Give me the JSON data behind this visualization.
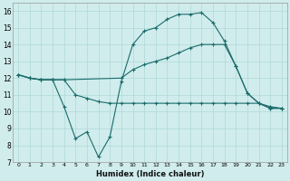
{
  "xlabel": "Humidex (Indice chaleur)",
  "bg_color": "#d0ecec",
  "grid_color": "#b0d8d8",
  "line_color": "#1a6b6b",
  "xlim": [
    -0.5,
    23.5
  ],
  "ylim": [
    7,
    16.5
  ],
  "line1_x": [
    0,
    1,
    2,
    3,
    4,
    5,
    6,
    7,
    8,
    9,
    10,
    11,
    12,
    13,
    14,
    15,
    16,
    17,
    18,
    19,
    20,
    21,
    22,
    23
  ],
  "line1_y": [
    12.2,
    12.0,
    11.9,
    11.9,
    10.3,
    8.4,
    8.8,
    7.3,
    8.5,
    11.8,
    14.0,
    14.8,
    15.0,
    15.5,
    15.8,
    15.8,
    15.9,
    15.3,
    14.2,
    12.7,
    11.1,
    10.5,
    10.2,
    10.2
  ],
  "line2_x": [
    0,
    1,
    2,
    3,
    4,
    9,
    10,
    11,
    12,
    13,
    14,
    15,
    16,
    17,
    18,
    19,
    20,
    21,
    22,
    23
  ],
  "line2_y": [
    12.2,
    12.0,
    11.9,
    11.9,
    11.9,
    12.0,
    12.5,
    12.8,
    13.0,
    13.2,
    13.5,
    13.8,
    14.0,
    14.0,
    14.0,
    12.7,
    11.1,
    10.5,
    10.2,
    10.2
  ],
  "line3_x": [
    0,
    1,
    2,
    3,
    4,
    5,
    6,
    7,
    8,
    9,
    10,
    11,
    12,
    13,
    14,
    15,
    16,
    17,
    18,
    19,
    20,
    21,
    22,
    23
  ],
  "line3_y": [
    12.2,
    12.0,
    11.9,
    11.9,
    11.9,
    11.0,
    10.8,
    10.6,
    10.5,
    10.5,
    10.5,
    10.5,
    10.5,
    10.5,
    10.5,
    10.5,
    10.5,
    10.5,
    10.5,
    10.5,
    10.5,
    10.5,
    10.3,
    10.2
  ],
  "xtick_fontsize": 4.5,
  "ytick_fontsize": 5.5,
  "xlabel_fontsize": 6.0
}
